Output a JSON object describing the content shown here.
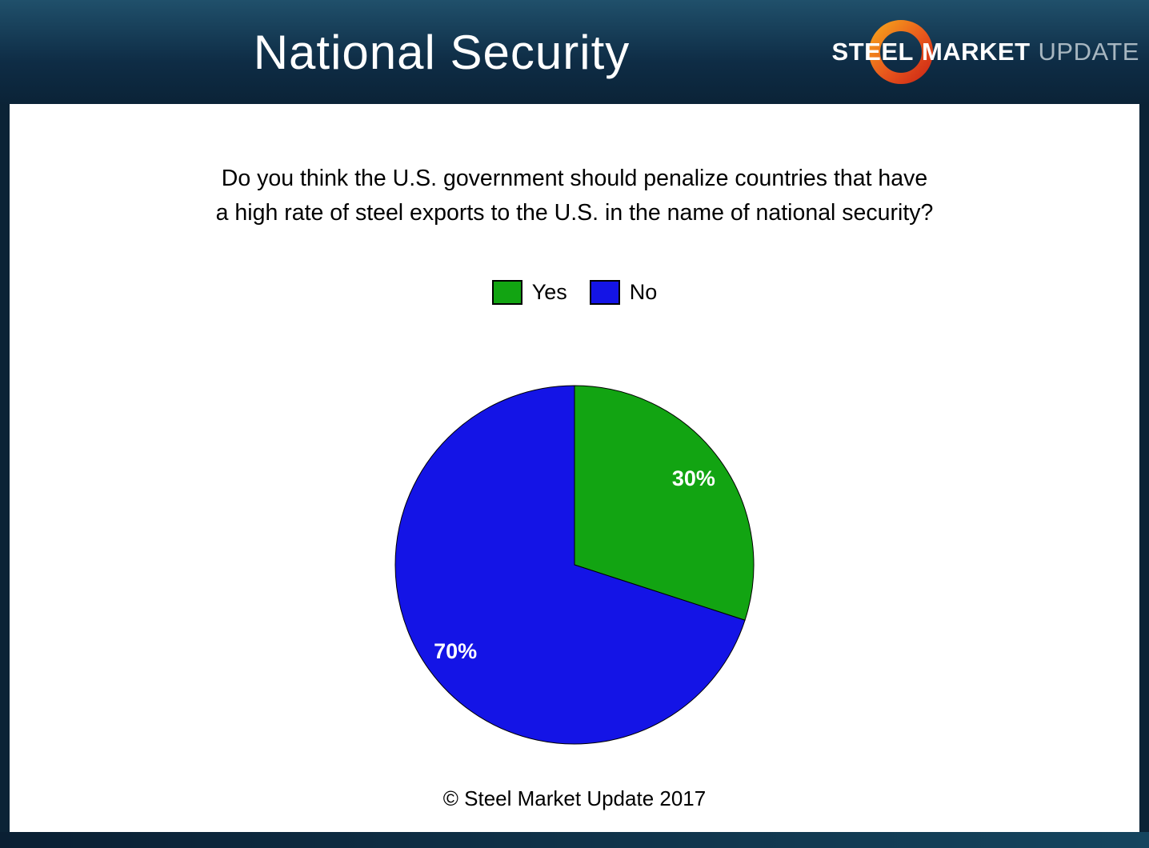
{
  "header": {
    "title": "National Security",
    "logo": {
      "word1": "STEEL",
      "word2": "MARKET",
      "word3": "UPDATE"
    }
  },
  "question": {
    "line1": "Do you think the U.S. government should penalize countries that have",
    "line2": "a high rate of steel exports to the U.S. in the name of national security?"
  },
  "chart_data": {
    "type": "pie",
    "title": "Do you think the U.S. government should penalize countries that have a high rate of steel exports to the U.S. in the name of national security?",
    "labels": [
      "Yes",
      "No"
    ],
    "values": [
      30,
      70
    ],
    "data_labels": [
      "30%",
      "70%"
    ],
    "colors": [
      "#12a412",
      "#1414e6"
    ],
    "data_label_color": "#ffffff",
    "start_angle_deg": 0,
    "direction": "clockwise",
    "legend_position": "above-chart"
  },
  "footer": {
    "copyright": "© Steel Market Update 2017"
  }
}
